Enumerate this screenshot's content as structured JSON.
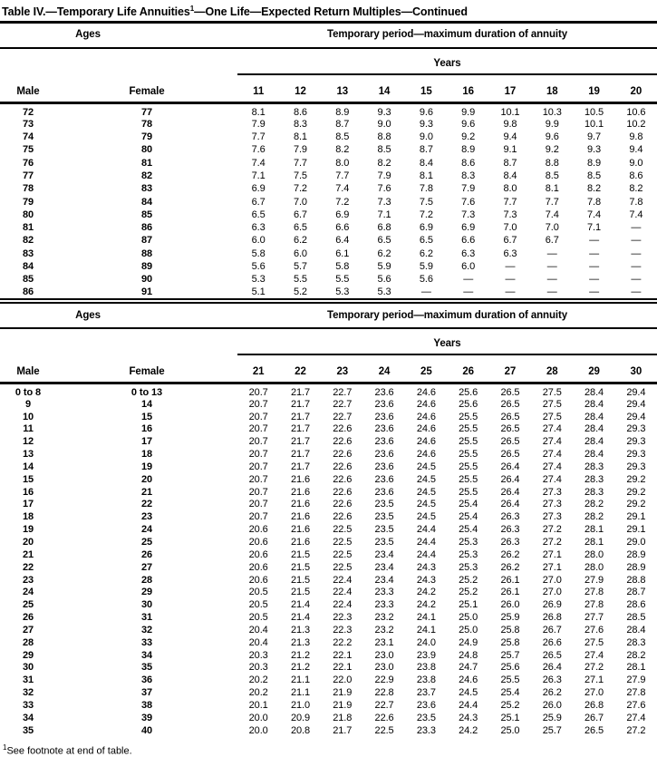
{
  "title": {
    "pre_sup": "Table IV.—Temporary Life Annuities",
    "sup": "1",
    "post_sup": "—One Life—Expected Return Multiples—Continued"
  },
  "footnote": {
    "sup": "1",
    "text": "See footnote at end of table."
  },
  "tables": [
    {
      "ages_header": "Ages",
      "period_header": "Temporary period—maximum duration of annuity",
      "years_header": "Years",
      "male_header": "Male",
      "female_header": "Female",
      "year_columns": [
        "11",
        "12",
        "13",
        "14",
        "15",
        "16",
        "17",
        "18",
        "19",
        "20"
      ],
      "rows": [
        {
          "male": "72",
          "female": "77",
          "values": [
            "8.1",
            "8.6",
            "8.9",
            "9.3",
            "9.6",
            "9.9",
            "10.1",
            "10.3",
            "10.5",
            "10.6"
          ]
        },
        {
          "male": "73",
          "female": "78",
          "values": [
            "7.9",
            "8.3",
            "8.7",
            "9.0",
            "9.3",
            "9.6",
            "9.8",
            "9.9",
            "10.1",
            "10.2"
          ]
        },
        {
          "male": "74",
          "female": "79",
          "values": [
            "7.7",
            "8.1",
            "8.5",
            "8.8",
            "9.0",
            "9.2",
            "9.4",
            "9.6",
            "9.7",
            "9.8"
          ]
        },
        {
          "male": "75",
          "female": "80",
          "values": [
            "7.6",
            "7.9",
            "8.2",
            "8.5",
            "8.7",
            "8.9",
            "9.1",
            "9.2",
            "9.3",
            "9.4"
          ]
        },
        {
          "male": "76",
          "female": "81",
          "values": [
            "7.4",
            "7.7",
            "8.0",
            "8.2",
            "8.4",
            "8.6",
            "8.7",
            "8.8",
            "8.9",
            "9.0"
          ]
        },
        {
          "male": "77",
          "female": "82",
          "values": [
            "7.1",
            "7.5",
            "7.7",
            "7.9",
            "8.1",
            "8.3",
            "8.4",
            "8.5",
            "8.5",
            "8.6"
          ]
        },
        {
          "male": "78",
          "female": "83",
          "values": [
            "6.9",
            "7.2",
            "7.4",
            "7.6",
            "7.8",
            "7.9",
            "8.0",
            "8.1",
            "8.2",
            "8.2"
          ]
        },
        {
          "male": "79",
          "female": "84",
          "values": [
            "6.7",
            "7.0",
            "7.2",
            "7.3",
            "7.5",
            "7.6",
            "7.7",
            "7.7",
            "7.8",
            "7.8"
          ]
        },
        {
          "male": "80",
          "female": "85",
          "values": [
            "6.5",
            "6.7",
            "6.9",
            "7.1",
            "7.2",
            "7.3",
            "7.3",
            "7.4",
            "7.4",
            "7.4"
          ]
        },
        {
          "male": "81",
          "female": "86",
          "values": [
            "6.3",
            "6.5",
            "6.6",
            "6.8",
            "6.9",
            "6.9",
            "7.0",
            "7.0",
            "7.1",
            "—"
          ]
        },
        {
          "male": "82",
          "female": "87",
          "values": [
            "6.0",
            "6.2",
            "6.4",
            "6.5",
            "6.5",
            "6.6",
            "6.7",
            "6.7",
            "—",
            "—"
          ]
        },
        {
          "male": "83",
          "female": "88",
          "values": [
            "5.8",
            "6.0",
            "6.1",
            "6.2",
            "6.2",
            "6.3",
            "6.3",
            "—",
            "—",
            "—"
          ]
        },
        {
          "male": "84",
          "female": "89",
          "values": [
            "5.6",
            "5.7",
            "5.8",
            "5.9",
            "5.9",
            "6.0",
            "—",
            "—",
            "—",
            "—"
          ]
        },
        {
          "male": "85",
          "female": "90",
          "values": [
            "5.3",
            "5.5",
            "5.5",
            "5.6",
            "5.6",
            "—",
            "—",
            "—",
            "—",
            "—"
          ]
        },
        {
          "male": "86",
          "female": "91",
          "values": [
            "5.1",
            "5.2",
            "5.3",
            "5.3",
            "—",
            "—",
            "—",
            "—",
            "—",
            "—"
          ]
        }
      ]
    },
    {
      "ages_header": "Ages",
      "period_header": "Temporary period—maximum duration of annuity",
      "years_header": "Years",
      "male_header": "Male",
      "female_header": "Female",
      "year_columns": [
        "21",
        "22",
        "23",
        "24",
        "25",
        "26",
        "27",
        "28",
        "29",
        "30"
      ],
      "rows": [
        {
          "male": "0 to 8",
          "female": "0 to 13",
          "values": [
            "20.7",
            "21.7",
            "22.7",
            "23.6",
            "24.6",
            "25.6",
            "26.5",
            "27.5",
            "28.4",
            "29.4"
          ]
        },
        {
          "male": "9",
          "female": "14",
          "values": [
            "20.7",
            "21.7",
            "22.7",
            "23.6",
            "24.6",
            "25.6",
            "26.5",
            "27.5",
            "28.4",
            "29.4"
          ]
        },
        {
          "male": "10",
          "female": "15",
          "values": [
            "20.7",
            "21.7",
            "22.7",
            "23.6",
            "24.6",
            "25.5",
            "26.5",
            "27.5",
            "28.4",
            "29.4"
          ]
        },
        {
          "male": "11",
          "female": "16",
          "values": [
            "20.7",
            "21.7",
            "22.6",
            "23.6",
            "24.6",
            "25.5",
            "26.5",
            "27.4",
            "28.4",
            "29.3"
          ]
        },
        {
          "male": "12",
          "female": "17",
          "values": [
            "20.7",
            "21.7",
            "22.6",
            "23.6",
            "24.6",
            "25.5",
            "26.5",
            "27.4",
            "28.4",
            "29.3"
          ]
        },
        {
          "male": "13",
          "female": "18",
          "values": [
            "20.7",
            "21.7",
            "22.6",
            "23.6",
            "24.6",
            "25.5",
            "26.5",
            "27.4",
            "28.4",
            "29.3"
          ]
        },
        {
          "male": "14",
          "female": "19",
          "values": [
            "20.7",
            "21.7",
            "22.6",
            "23.6",
            "24.5",
            "25.5",
            "26.4",
            "27.4",
            "28.3",
            "29.3"
          ]
        },
        {
          "male": "15",
          "female": "20",
          "values": [
            "20.7",
            "21.6",
            "22.6",
            "23.6",
            "24.5",
            "25.5",
            "26.4",
            "27.4",
            "28.3",
            "29.2"
          ]
        },
        {
          "male": "16",
          "female": "21",
          "values": [
            "20.7",
            "21.6",
            "22.6",
            "23.6",
            "24.5",
            "25.5",
            "26.4",
            "27.3",
            "28.3",
            "29.2"
          ]
        },
        {
          "male": "17",
          "female": "22",
          "values": [
            "20.7",
            "21.6",
            "22.6",
            "23.5",
            "24.5",
            "25.4",
            "26.4",
            "27.3",
            "28.2",
            "29.2"
          ]
        },
        {
          "male": "18",
          "female": "23",
          "values": [
            "20.7",
            "21.6",
            "22.6",
            "23.5",
            "24.5",
            "25.4",
            "26.3",
            "27.3",
            "28.2",
            "29.1"
          ]
        },
        {
          "male": "19",
          "female": "24",
          "values": [
            "20.6",
            "21.6",
            "22.5",
            "23.5",
            "24.4",
            "25.4",
            "26.3",
            "27.2",
            "28.1",
            "29.1"
          ]
        },
        {
          "male": "20",
          "female": "25",
          "values": [
            "20.6",
            "21.6",
            "22.5",
            "23.5",
            "24.4",
            "25.3",
            "26.3",
            "27.2",
            "28.1",
            "29.0"
          ]
        },
        {
          "male": "21",
          "female": "26",
          "values": [
            "20.6",
            "21.5",
            "22.5",
            "23.4",
            "24.4",
            "25.3",
            "26.2",
            "27.1",
            "28.0",
            "28.9"
          ]
        },
        {
          "male": "22",
          "female": "27",
          "values": [
            "20.6",
            "21.5",
            "22.5",
            "23.4",
            "24.3",
            "25.3",
            "26.2",
            "27.1",
            "28.0",
            "28.9"
          ]
        },
        {
          "male": "23",
          "female": "28",
          "values": [
            "20.6",
            "21.5",
            "22.4",
            "23.4",
            "24.3",
            "25.2",
            "26.1",
            "27.0",
            "27.9",
            "28.8"
          ]
        },
        {
          "male": "24",
          "female": "29",
          "values": [
            "20.5",
            "21.5",
            "22.4",
            "23.3",
            "24.2",
            "25.2",
            "26.1",
            "27.0",
            "27.8",
            "28.7"
          ]
        },
        {
          "male": "25",
          "female": "30",
          "values": [
            "20.5",
            "21.4",
            "22.4",
            "23.3",
            "24.2",
            "25.1",
            "26.0",
            "26.9",
            "27.8",
            "28.6"
          ]
        },
        {
          "male": "26",
          "female": "31",
          "values": [
            "20.5",
            "21.4",
            "22.3",
            "23.2",
            "24.1",
            "25.0",
            "25.9",
            "26.8",
            "27.7",
            "28.5"
          ]
        },
        {
          "male": "27",
          "female": "32",
          "values": [
            "20.4",
            "21.3",
            "22.3",
            "23.2",
            "24.1",
            "25.0",
            "25.8",
            "26.7",
            "27.6",
            "28.4"
          ]
        },
        {
          "male": "28",
          "female": "33",
          "values": [
            "20.4",
            "21.3",
            "22.2",
            "23.1",
            "24.0",
            "24.9",
            "25.8",
            "26.6",
            "27.5",
            "28.3"
          ]
        },
        {
          "male": "29",
          "female": "34",
          "values": [
            "20.3",
            "21.2",
            "22.1",
            "23.0",
            "23.9",
            "24.8",
            "25.7",
            "26.5",
            "27.4",
            "28.2"
          ]
        },
        {
          "male": "30",
          "female": "35",
          "values": [
            "20.3",
            "21.2",
            "22.1",
            "23.0",
            "23.8",
            "24.7",
            "25.6",
            "26.4",
            "27.2",
            "28.1"
          ]
        },
        {
          "male": "31",
          "female": "36",
          "values": [
            "20.2",
            "21.1",
            "22.0",
            "22.9",
            "23.8",
            "24.6",
            "25.5",
            "26.3",
            "27.1",
            "27.9"
          ]
        },
        {
          "male": "32",
          "female": "37",
          "values": [
            "20.2",
            "21.1",
            "21.9",
            "22.8",
            "23.7",
            "24.5",
            "25.4",
            "26.2",
            "27.0",
            "27.8"
          ]
        },
        {
          "male": "33",
          "female": "38",
          "values": [
            "20.1",
            "21.0",
            "21.9",
            "22.7",
            "23.6",
            "24.4",
            "25.2",
            "26.0",
            "26.8",
            "27.6"
          ]
        },
        {
          "male": "34",
          "female": "39",
          "values": [
            "20.0",
            "20.9",
            "21.8",
            "22.6",
            "23.5",
            "24.3",
            "25.1",
            "25.9",
            "26.7",
            "27.4"
          ]
        },
        {
          "male": "35",
          "female": "40",
          "values": [
            "20.0",
            "20.8",
            "21.7",
            "22.5",
            "23.3",
            "24.2",
            "25.0",
            "25.7",
            "26.5",
            "27.2"
          ]
        }
      ]
    }
  ]
}
